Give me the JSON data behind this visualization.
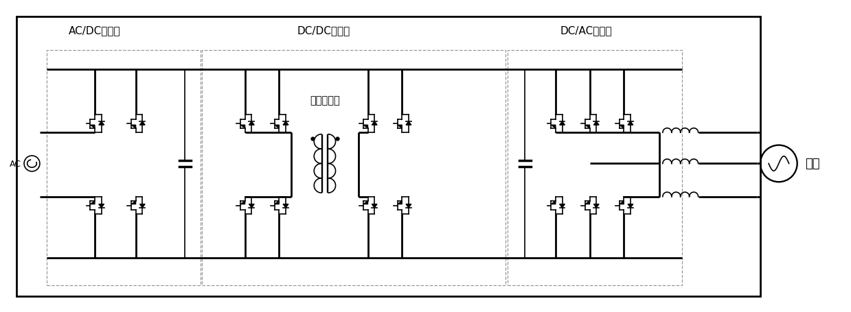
{
  "bg_color": "#ffffff",
  "border_color": "#000000",
  "line_color": "#000000",
  "dashed_color": "#999999",
  "label_ac_dc": "AC/DC整流器",
  "label_dc_dc": "DC/DC变换器",
  "label_dc_ac": "DC/AC逆变器",
  "label_hf_transformer": "高频变压器",
  "label_ac": "AC",
  "label_motor": "电机",
  "figsize": [
    12.39,
    4.56
  ],
  "dpi": 100,
  "lw_main": 2.0,
  "lw_thin": 1.2
}
